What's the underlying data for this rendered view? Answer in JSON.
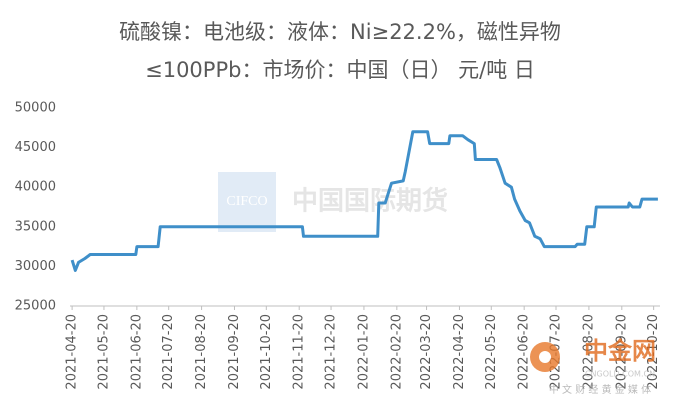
{
  "chart_data": {
    "type": "line",
    "title": "硫酸镍：电池级：液体：Ni≥22.2%，磁性异物",
    "subtitle": "≤100PPb：市场价：中国（日） 元/吨 日",
    "x": [
      "2021-04-20",
      "2021-04-23",
      "2021-04-26",
      "2021-05-02",
      "2021-05-07",
      "2021-06-19",
      "2021-06-20",
      "2021-07-10",
      "2021-07-12",
      "2021-11-23",
      "2021-11-24",
      "2022-02-02",
      "2022-02-03",
      "2022-02-09",
      "2022-02-15",
      "2022-02-26",
      "2022-02-28",
      "2022-03-07",
      "2022-03-21",
      "2022-03-23",
      "2022-04-10",
      "2022-04-11",
      "2022-04-23",
      "2022-04-28",
      "2022-05-04",
      "2022-05-05",
      "2022-05-25",
      "2022-05-28",
      "2022-06-02",
      "2022-06-08",
      "2022-06-11",
      "2022-06-16",
      "2022-06-21",
      "2022-06-25",
      "2022-06-30",
      "2022-07-05",
      "2022-07-09",
      "2022-08-07",
      "2022-08-09",
      "2022-08-16",
      "2022-08-18",
      "2022-08-25",
      "2022-08-27",
      "2022-09-26",
      "2022-09-27",
      "2022-09-30",
      "2022-10-07",
      "2022-10-09",
      "2022-10-24"
    ],
    "series": [
      {
        "name": "硫酸镍",
        "color": "#3f8fc9",
        "values": [
          30800,
          29500,
          30500,
          31000,
          31500,
          31500,
          32500,
          32500,
          35000,
          35000,
          33800,
          33800,
          38000,
          38000,
          40500,
          40800,
          42000,
          47000,
          47000,
          45500,
          45500,
          46500,
          46500,
          46000,
          45500,
          43500,
          43500,
          42500,
          40500,
          40000,
          38500,
          37000,
          35800,
          35500,
          33800,
          33500,
          32500,
          32500,
          32800,
          32800,
          35000,
          35000,
          37500,
          37500,
          38000,
          37500,
          37500,
          38500,
          38500
        ]
      }
    ],
    "xlim": [
      "2021-04-18",
      "2022-10-26"
    ],
    "xticks": [
      "2021-04-20",
      "2021-05-20",
      "2021-06-20",
      "2021-07-20",
      "2021-08-20",
      "2021-09-20",
      "2021-10-20",
      "2021-11-20",
      "2021-12-20",
      "2022-01-20",
      "2022-02-20",
      "2022-03-20",
      "2022-04-20",
      "2022-05-20",
      "2022-06-20",
      "2022-07-20",
      "2022-08-20",
      "2022-09-20",
      "2022-10-20"
    ],
    "ylim": [
      25000,
      50000
    ],
    "yticks": [
      25000,
      30000,
      35000,
      40000,
      45000,
      50000
    ],
    "grid": false
  },
  "watermarks": {
    "cifco": "CIFCO",
    "cifco_name": "中国国际期货",
    "site": "中金网",
    "site_url": "CNGOLD.COM.CN",
    "site_tagline": "中 文   财 经   黄 金   媒 体"
  }
}
